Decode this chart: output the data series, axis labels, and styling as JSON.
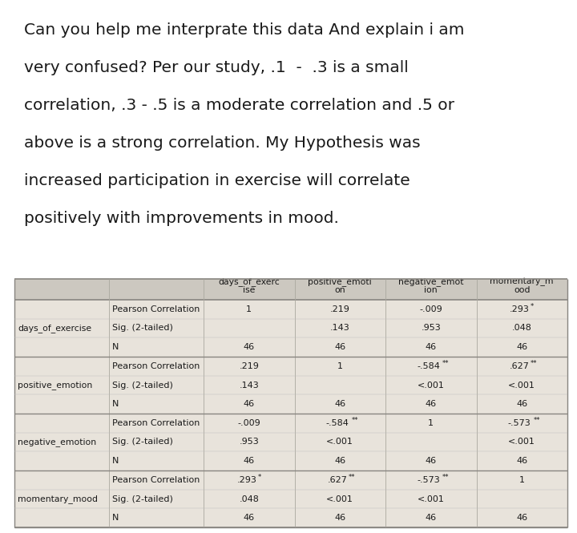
{
  "intro_lines": [
    "Can you help me interprate this data And explain i am",
    "very confused? Per our study, .1  -  .3 is a small",
    "correlation, .3 - .5 is a moderate correlation and .5 or",
    "above is a strong correlation. My Hypothesis was",
    "increased participation in exercise will correlate",
    "positively with improvements in mood."
  ],
  "col_headers": [
    [
      "days_of_exerc",
      "ise"
    ],
    [
      "positive_emoti",
      "on"
    ],
    [
      "negative_emot",
      "ion"
    ],
    [
      "momentary_m",
      "ood"
    ]
  ],
  "groups": [
    {
      "name": "days_of_exercise",
      "rows": [
        {
          "label": "Pearson Correlation",
          "vals": [
            "1",
            ".219",
            "-.009",
            ".293"
          ],
          "stars": [
            "",
            "",
            "",
            "*"
          ]
        },
        {
          "label": "Sig. (2-tailed)",
          "vals": [
            "",
            ".143",
            ".953",
            ".048"
          ],
          "stars": [
            "",
            "",
            "",
            ""
          ]
        },
        {
          "label": "N",
          "vals": [
            "46",
            "46",
            "46",
            "46"
          ],
          "stars": [
            "",
            "",
            "",
            ""
          ]
        }
      ]
    },
    {
      "name": "positive_emotion",
      "rows": [
        {
          "label": "Pearson Correlation",
          "vals": [
            ".219",
            "1",
            "-.584",
            ".627"
          ],
          "stars": [
            "",
            "",
            "**",
            "**"
          ]
        },
        {
          "label": "Sig. (2-tailed)",
          "vals": [
            ".143",
            "",
            "<.001",
            "<.001"
          ],
          "stars": [
            "",
            "",
            "",
            ""
          ]
        },
        {
          "label": "N",
          "vals": [
            "46",
            "46",
            "46",
            "46"
          ],
          "stars": [
            "",
            "",
            "",
            ""
          ]
        }
      ]
    },
    {
      "name": "negative_emotion",
      "rows": [
        {
          "label": "Pearson Correlation",
          "vals": [
            "-.009",
            "-.584",
            "1",
            "-.573"
          ],
          "stars": [
            "",
            "**",
            "",
            "**"
          ]
        },
        {
          "label": "Sig. (2-tailed)",
          "vals": [
            ".953",
            "<.001",
            "",
            "<.001"
          ],
          "stars": [
            "",
            "",
            "",
            ""
          ]
        },
        {
          "label": "N",
          "vals": [
            "46",
            "46",
            "46",
            "46"
          ],
          "stars": [
            "",
            "",
            "",
            ""
          ]
        }
      ]
    },
    {
      "name": "momentary_mood",
      "rows": [
        {
          "label": "Pearson Correlation",
          "vals": [
            ".293",
            ".627",
            "-.573",
            "1"
          ],
          "stars": [
            "*",
            "**",
            "**",
            ""
          ]
        },
        {
          "label": "Sig. (2-tailed)",
          "vals": [
            ".048",
            "<.001",
            "<.001",
            ""
          ],
          "stars": [
            "",
            "",
            "",
            ""
          ]
        },
        {
          "label": "N",
          "vals": [
            "46",
            "46",
            "46",
            "46"
          ],
          "stars": [
            "",
            "",
            "",
            ""
          ]
        }
      ]
    }
  ],
  "table_bg": "#e8e3db",
  "header_bg": "#ccc8c0",
  "line_color": "#aaa89f",
  "thick_line_color": "#888580",
  "text_color": "#1a1a1a",
  "intro_font_size": 14.5,
  "header_font_size": 7.8,
  "cell_font_size": 8.0,
  "name_font_size": 7.8,
  "star_font_size": 6.0
}
